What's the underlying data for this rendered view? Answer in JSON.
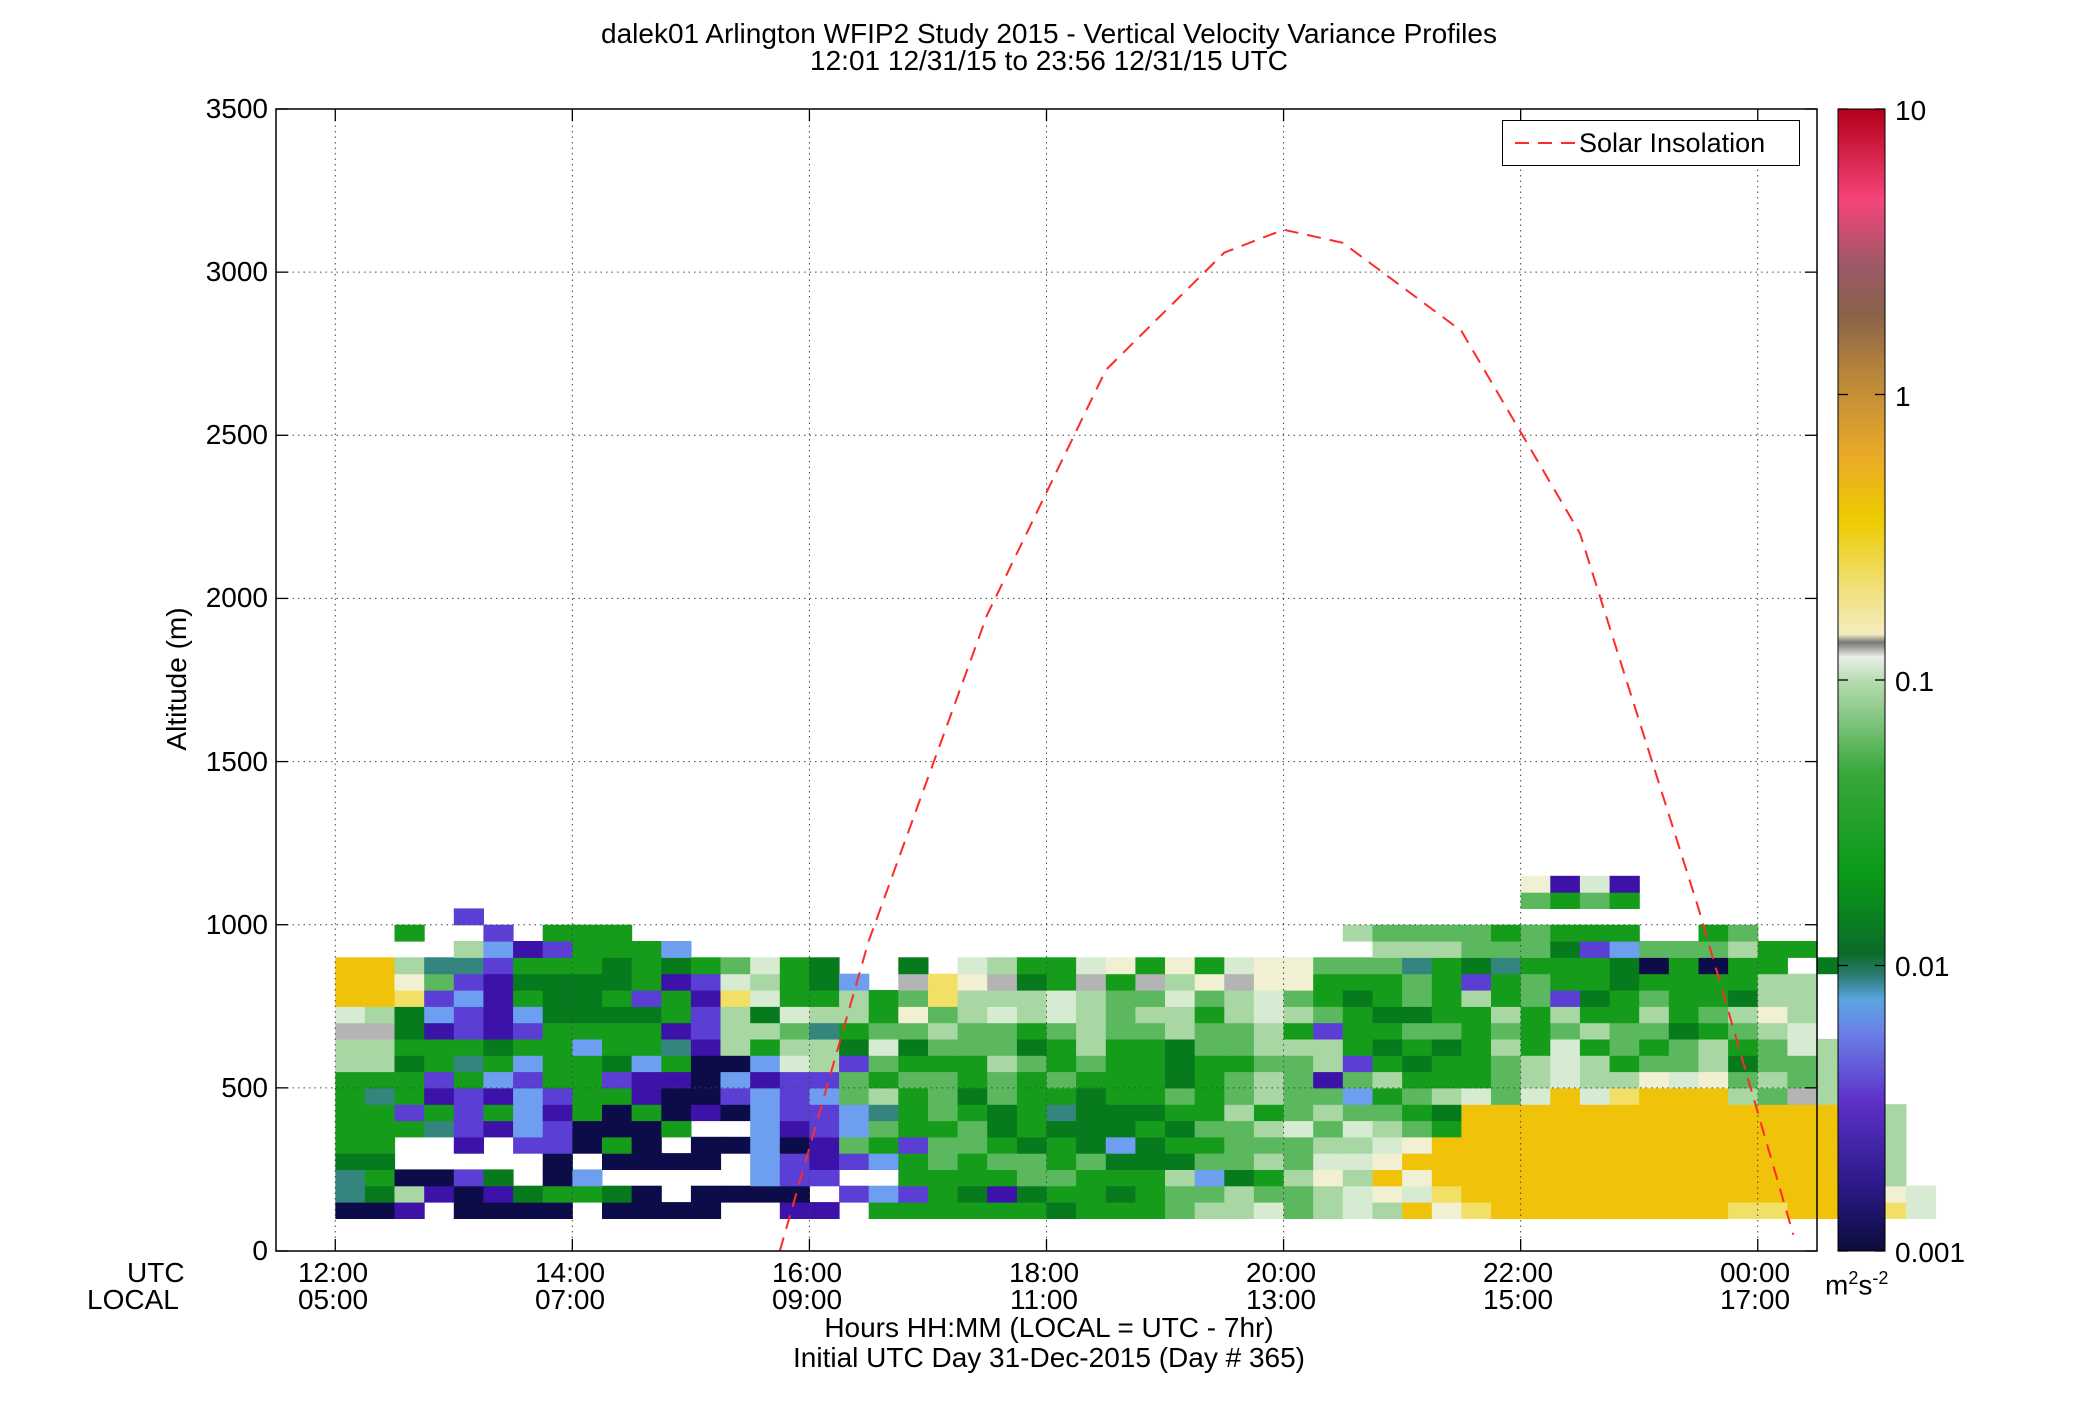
{
  "chart_data": {
    "type": "heatmap",
    "title": "dalek01 Arlington WFIP2 Study 2015 - Vertical Velocity Variance Profiles",
    "subtitle": "12:01 12/31/15 to 23:56 12/31/15  UTC",
    "ylabel": "Altitude (m)",
    "xlabel": "Hours HH:MM  (LOCAL = UTC - 7hr)",
    "xlabel2": "Initial UTC Day 31-Dec-2015 (Day # 365)",
    "row_label_utc": "UTC",
    "row_label_local": "LOCAL",
    "ylim": [
      0,
      3500
    ],
    "yticks": [
      "0",
      "500",
      "1000",
      "1500",
      "2000",
      "2500",
      "3000",
      "3500"
    ],
    "xlim_utc_hours": [
      11.5,
      24.5
    ],
    "xticks_utc": [
      "12:00",
      "14:00",
      "16:00",
      "18:00",
      "20:00",
      "22:00",
      "00:00"
    ],
    "xticks_local": [
      "05:00",
      "07:00",
      "09:00",
      "11:00",
      "13:00",
      "15:00",
      "17:00"
    ],
    "grid": true,
    "colorbar": {
      "scale": "log",
      "range": [
        0.001,
        10
      ],
      "ticks": [
        "0.001",
        "0.01",
        "0.1",
        "1",
        "10"
      ],
      "units": "m²s⁻²",
      "units_base": "m",
      "units_sup1": "2",
      "units_mid": "s",
      "units_sup2": "-2"
    },
    "legend": {
      "entries": [
        "Solar Insolation"
      ],
      "placement": "top-right"
    },
    "series": [
      {
        "name": "Solar Insolation",
        "style": "dashed",
        "color": "#ff2a2a",
        "x_utc_hours": [
          15.75,
          16.5,
          17.5,
          18.5,
          19.5,
          20.0,
          20.5,
          21.5,
          22.5,
          23.5,
          24.3
        ],
        "y": [
          0,
          950,
          1950,
          2700,
          3060,
          3130,
          3090,
          2820,
          2200,
          1050,
          50
        ]
      }
    ],
    "grid_cells": {
      "time_start_utc": 12.0,
      "time_step_hours": 0.25,
      "height_start_m": 100,
      "height_step_m": 50,
      "legend_codes": {
        "Y": "~0.2-0.4 (yellow)",
        "y": "~0.15 (light yellow)",
        "c": "~0.1 (cream)",
        "w": "~0.08 (pale green)",
        "l": "~0.05 (light green)",
        "m": "~0.025 (medium green)",
        "g": "~0.015 (green)",
        "d": "~0.011 (dark green)",
        "t": "~0.008 (teal)",
        "b": "~0.006 (light blue)",
        "v": "~0.004 (blue-violet)",
        "p": "~0.003 (purple)",
        "n": "~0.0015 (navy)",
        "s": "~0.1 (gray)",
        ".": "no data"
      },
      "rows_bottom_to_top": [
        "nnp.nnnn.nnnn..pp.ggggggdgggmllwmlwlYcyYYYYYYYYyyYYYyw",
        "tdlpnpdggdn.nnnn.vbvgdpdggdgmmlmmlwcwyYYYYYYYYYYYYYYcw",
        "tgnnvd.nb.....bvv..ggggmmggglbdglclYcYYYYYYYYYYYYYYcl",
        "dd.....n.nnnn.bvpvbgmgmmgmdddmmlmwwcYYYYYYYYYYYYYYYwl",
        "gg..p.vvngn.nnbnpmgvmmgdgdbdggmmmllwcYYYYYYYYYYYYYYwl",
        "gggtvpbvnnng..bpvbmggmdgdddgdmmlwmwlmgYYYYYYYYYYYYYgl",
        "ggvgvgbpgngnpnbvvbtgmgdgtdddgglgmlmmgdYYYYYYYYYYYYYgl",
        "gtgpvpbvggpnnvbvbmlgmdmggdggmgmlmmbgmlwmwYwyYYYlmslw",
        "gggvgbvggvppnbpvvmgmmgmgmgggdgmlmpmlgggmlwllcwcmlmll",
        "lldgtgbggdbgnnbwlvmggglmgmggdggmmlvgdggmlwlgmmldmmll",
        "llgggdggbggtplglldwdmmmdglggdmmlllgdgdglgwgmgmlgmwll",
        "ssdpvpvggggpvllmtgmmlmmgmlmmlmmlgvggmmgmgmlmmdgmlw",
        "wldbvpbddddgvldwllgcmlwlwlmllglwlmgddgglglgglgmlcl",
        "YYyvbpgddgvgpywgglgmylllwlmmwmlwmgdgmglgmvdgmggdll",
        "YYcmvpddddgpvwlgdb.sycsdgsgslcsccgggmgvgmggdggggll",
        "YYlttvgggdgdgmwgd..d.wlggwcgcgwccmmmtgdtgggdngngg.d",
        "....lbpvgggb.......................lllmmmdvbmmmlgg..",
        "..g..v.ggg........................lmmmmgmggg..gm.",
        "....v.............................................",
        "........................................mgmg.....",
        "........................................cpwp......"
      ]
    }
  }
}
